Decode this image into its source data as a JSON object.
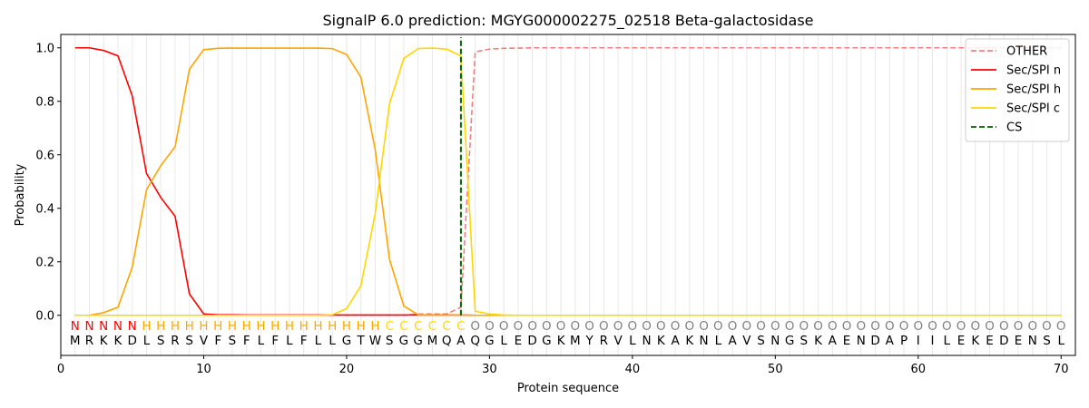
{
  "chart_data": {
    "type": "line",
    "title": "SignalP 6.0 prediction: MGYG000002275_02518 Beta-galactosidase",
    "xlabel": "Protein sequence",
    "ylabel": "Probability",
    "xlim": [
      0,
      71
    ],
    "ylim": [
      -0.15,
      1.05
    ],
    "x_ticks": [
      0,
      10,
      20,
      30,
      40,
      50,
      60,
      70
    ],
    "y_ticks": [
      0.0,
      0.2,
      0.4,
      0.6,
      0.8,
      1.0
    ],
    "x_tick_labels": [
      "0",
      "10",
      "20",
      "30",
      "40",
      "50",
      "60",
      "70"
    ],
    "y_tick_labels": [
      "0.0",
      "0.2",
      "0.4",
      "0.6",
      "0.8",
      "1.0"
    ],
    "grid": "vertical lines at each residue",
    "legend_position": "top-right",
    "sequence": "MRKKDLSRSVFSFLFLFLLGTWSGGMQAQGLEDGKMYRVLNKAKNLAVSNGSKAENDAPIILEKEDENSL",
    "labels": "NNNNNHHHHHHHHHHHHHHHHHCCCCCCOOOOOOOOOOOOOOOOOOOOOOOOOOOOOOOOOOOOOOOOOO",
    "label_colors": {
      "N": "#ff0000",
      "H": "#ffa500",
      "C": "#ffd700",
      "O": "#808080"
    },
    "cleavage_site": 28,
    "series": [
      {
        "name": "OTHER",
        "color": "#f08080",
        "dash": "dashed",
        "values": [
          0,
          0,
          0,
          0,
          0,
          0,
          0,
          0,
          0,
          0,
          0,
          0,
          0,
          0,
          0,
          0,
          0,
          0,
          0,
          0,
          0,
          0,
          0,
          0,
          0.005,
          0.005,
          0.005,
          0.03,
          0.985,
          0.995,
          0.998,
          0.999,
          1,
          1,
          1,
          1,
          1,
          1,
          1,
          1,
          1,
          1,
          1,
          1,
          1,
          1,
          1,
          1,
          1,
          1,
          1,
          1,
          1,
          1,
          1,
          1,
          1,
          1,
          1,
          1,
          1,
          1,
          1,
          1,
          1,
          1,
          1,
          1,
          1,
          1
        ]
      },
      {
        "name": "Sec/SPI n",
        "color": "#ff0000",
        "dash": "solid",
        "values": [
          1.0,
          1.0,
          0.99,
          0.97,
          0.82,
          0.53,
          0.44,
          0.37,
          0.08,
          0.005,
          0.002,
          0.002,
          0.001,
          0.001,
          0.001,
          0.001,
          0.001,
          0.001,
          0.001,
          0.001,
          0.001,
          0.001,
          0.001,
          0.001,
          0.001,
          0.001,
          0.001,
          0.001,
          0,
          0,
          0,
          0,
          0,
          0,
          0,
          0,
          0,
          0,
          0,
          0,
          0,
          0,
          0,
          0,
          0,
          0,
          0,
          0,
          0,
          0,
          0,
          0,
          0,
          0,
          0,
          0,
          0,
          0,
          0,
          0,
          0,
          0,
          0,
          0,
          0,
          0,
          0,
          0,
          0,
          0
        ]
      },
      {
        "name": "Sec/SPI h",
        "color": "#ffa500",
        "dash": "solid",
        "values": [
          0.0,
          0.0,
          0.01,
          0.03,
          0.18,
          0.47,
          0.56,
          0.63,
          0.92,
          0.993,
          0.998,
          0.999,
          0.999,
          0.999,
          0.999,
          0.999,
          0.999,
          0.999,
          0.997,
          0.975,
          0.89,
          0.62,
          0.21,
          0.035,
          0.002,
          0.001,
          0.001,
          0.001,
          0,
          0,
          0,
          0,
          0,
          0,
          0,
          0,
          0,
          0,
          0,
          0,
          0,
          0,
          0,
          0,
          0,
          0,
          0,
          0,
          0,
          0,
          0,
          0,
          0,
          0,
          0,
          0,
          0,
          0,
          0,
          0,
          0,
          0,
          0,
          0,
          0,
          0,
          0,
          0,
          0,
          0
        ]
      },
      {
        "name": "Sec/SPI c",
        "color": "#ffd700",
        "dash": "solid",
        "values": [
          0,
          0,
          0,
          0,
          0,
          0,
          0,
          0,
          0,
          0,
          0,
          0,
          0,
          0,
          0,
          0,
          0,
          0,
          0.002,
          0.025,
          0.11,
          0.38,
          0.79,
          0.96,
          0.997,
          0.999,
          0.995,
          0.97,
          0.015,
          0.005,
          0.001,
          0,
          0,
          0,
          0,
          0,
          0,
          0,
          0,
          0,
          0,
          0,
          0,
          0,
          0,
          0,
          0,
          0,
          0,
          0,
          0,
          0,
          0,
          0,
          0,
          0,
          0,
          0,
          0,
          0,
          0,
          0,
          0,
          0,
          0,
          0,
          0,
          0,
          0,
          0
        ]
      },
      {
        "name": "CS",
        "color": "#006400",
        "dash": "dashed",
        "vertical_at": 28,
        "y_range": [
          0,
          1.04
        ]
      }
    ]
  }
}
